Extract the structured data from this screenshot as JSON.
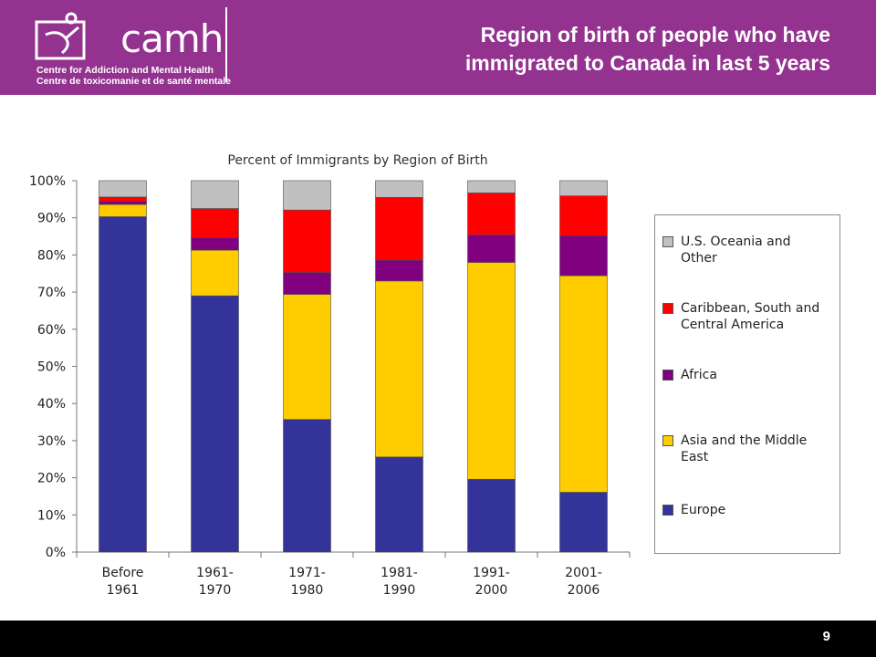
{
  "header": {
    "logo_word": "camh",
    "logo_line1": "Centre for Addiction and Mental Health",
    "logo_line2": "Centre de toxicomanie et de santé mentale",
    "title_line1": "Region of birth of people who have",
    "title_line2": "immigrated to Canada in last 5 years",
    "background_color": "#93338f"
  },
  "footer": {
    "page_number": "9"
  },
  "chart_data": {
    "type": "bar",
    "stacked": true,
    "title": "Percent of Immigrants by Region of Birth",
    "categories": [
      [
        "Before",
        "1961"
      ],
      [
        "1961-",
        "1970"
      ],
      [
        "1971-",
        "1980"
      ],
      [
        "1981-",
        "1990"
      ],
      [
        "1991-",
        "2000"
      ],
      [
        "2001-",
        "2006"
      ]
    ],
    "y_ticks": [
      "0%",
      "10%",
      "20%",
      "30%",
      "40%",
      "50%",
      "60%",
      "70%",
      "80%",
      "90%",
      "100%"
    ],
    "ylim": [
      0,
      100
    ],
    "grid": false,
    "legend_position": "right",
    "series": [
      {
        "name": "Europe",
        "color": "#333399",
        "values": [
          90.3,
          69.0,
          35.7,
          25.6,
          19.6,
          16.1
        ]
      },
      {
        "name": "Asia and the Middle East",
        "color": "#ffcc00",
        "values": [
          3.3,
          12.3,
          33.7,
          47.4,
          58.4,
          58.3
        ]
      },
      {
        "name": "Africa",
        "color": "#800080",
        "values": [
          0.8,
          3.3,
          5.9,
          5.6,
          7.4,
          10.8
        ]
      },
      {
        "name": "Caribbean, South and Central America",
        "color": "#ff0000",
        "values": [
          1.2,
          7.9,
          16.8,
          16.9,
          11.3,
          10.7
        ]
      },
      {
        "name": "U.S. Oceania and Other",
        "color": "#c0c0c0",
        "values": [
          4.4,
          7.5,
          7.9,
          4.5,
          3.3,
          4.1
        ]
      }
    ],
    "legend_order": [
      {
        "label_lines": [
          "U.S. Oceania and",
          "Other"
        ],
        "color": "#c0c0c0"
      },
      {
        "label_lines": [
          "Caribbean, South and",
          "Central America"
        ],
        "color": "#ff0000"
      },
      {
        "label_lines": [
          "Africa"
        ],
        "color": "#800080"
      },
      {
        "label_lines": [
          "Asia and the Middle",
          "East"
        ],
        "color": "#ffcc00"
      },
      {
        "label_lines": [
          "Europe"
        ],
        "color": "#333399"
      }
    ]
  }
}
